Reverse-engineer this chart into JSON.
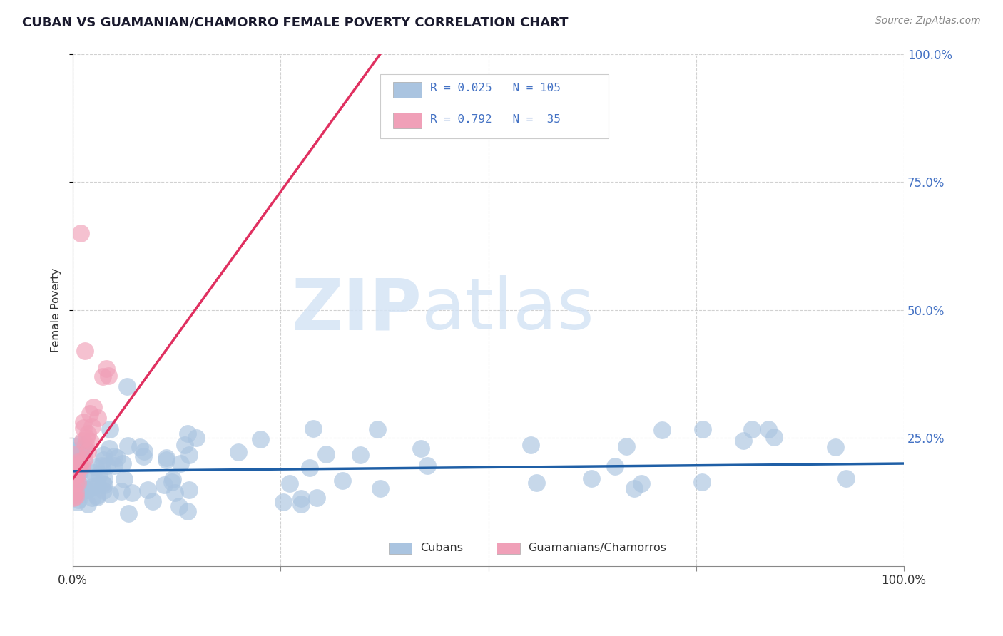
{
  "title": "CUBAN VS GUAMANIAN/CHAMORRO FEMALE POVERTY CORRELATION CHART",
  "source": "Source: ZipAtlas.com",
  "ylabel": "Female Poverty",
  "watermark_zip": "ZIP",
  "watermark_atlas": "atlas",
  "cubans_color": "#aac4e0",
  "cubans_edge_color": "#aac4e0",
  "cubans_line_color": "#1f5fa6",
  "guam_color": "#f0a0b8",
  "guam_edge_color": "#f0a0b8",
  "guam_line_color": "#e03060",
  "background_color": "#ffffff",
  "grid_color": "#cccccc",
  "ytick_color": "#4472c4",
  "xtick_color": "#333333",
  "legend_R1": "R = 0.025",
  "legend_N1": "N = 105",
  "legend_R2": "R = 0.792",
  "legend_N2": "N =  35"
}
